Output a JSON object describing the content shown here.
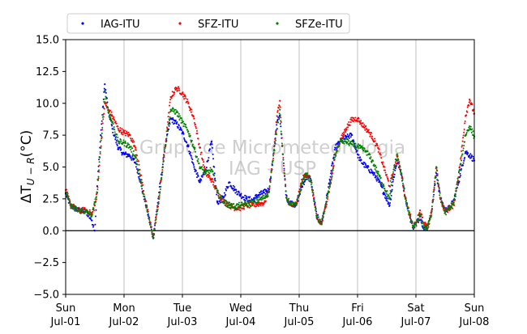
{
  "chart_data": {
    "type": "scatter",
    "title": "",
    "xlabel": "",
    "ylabel": "ΔT_{U−R} (°C)",
    "ylabel_main": "ΔT",
    "ylabel_sub": "U − R",
    "ylabel_unit": "(°C)",
    "ylim": [
      -5.0,
      15.0
    ],
    "xlim_days": [
      0,
      7
    ],
    "grid": "vertical at day boundaries",
    "legend_position": "top (above plot), horizontal",
    "watermark": [
      "Grupo de Micrometeorologia",
      "IAG - USP"
    ],
    "y_ticks": [
      "−5.0",
      "−2.5",
      "0.0",
      "2.5",
      "5.0",
      "7.5",
      "10.0",
      "12.5",
      "15.0"
    ],
    "y_tick_values": [
      -5,
      -2.5,
      0,
      2.5,
      5,
      7.5,
      10,
      12.5,
      15
    ],
    "x_ticks": [
      {
        "day": 0,
        "line1": "Sun",
        "line2": "Jul-01"
      },
      {
        "day": 1,
        "line1": "Mon",
        "line2": "Jul-02"
      },
      {
        "day": 2,
        "line1": "Tue",
        "line2": "Jul-03"
      },
      {
        "day": 3,
        "line1": "Wed",
        "line2": "Jul-04"
      },
      {
        "day": 4,
        "line1": "Thu",
        "line2": "Jul-05"
      },
      {
        "day": 5,
        "line1": "Fri",
        "line2": "Jul-06"
      },
      {
        "day": 6,
        "line1": "Sat",
        "line2": "Jul-07"
      },
      {
        "day": 7,
        "line1": "Sun",
        "line2": "Jul-08"
      }
    ],
    "series": [
      {
        "name": "IAG-ITU",
        "color": "#0000ff",
        "points": [
          [
            0,
            2.9
          ],
          [
            0.08,
            2.0
          ],
          [
            0.2,
            1.6
          ],
          [
            0.35,
            1.5
          ],
          [
            0.45,
            0.8
          ],
          [
            0.5,
            0.0
          ],
          [
            0.54,
            3.5
          ],
          [
            0.6,
            7.5
          ],
          [
            0.67,
            11.5
          ],
          [
            0.73,
            9.5
          ],
          [
            0.8,
            8.0
          ],
          [
            0.9,
            6.5
          ],
          [
            1.0,
            6.0
          ],
          [
            1.1,
            5.9
          ],
          [
            1.2,
            5.3
          ],
          [
            1.3,
            3.5
          ],
          [
            1.4,
            1.5
          ],
          [
            1.5,
            -0.6
          ],
          [
            1.6,
            3.0
          ],
          [
            1.7,
            6.5
          ],
          [
            1.8,
            8.8
          ],
          [
            1.9,
            8.4
          ],
          [
            2.0,
            7.7
          ],
          [
            2.1,
            6.6
          ],
          [
            2.2,
            5.0
          ],
          [
            2.3,
            3.8
          ],
          [
            2.4,
            4.8
          ],
          [
            2.5,
            7.0
          ],
          [
            2.55,
            4.5
          ],
          [
            2.6,
            2.2
          ],
          [
            2.7,
            2.6
          ],
          [
            2.8,
            3.8
          ],
          [
            2.9,
            3.2
          ],
          [
            3.0,
            2.8
          ],
          [
            3.1,
            2.5
          ],
          [
            3.2,
            2.4
          ],
          [
            3.3,
            2.8
          ],
          [
            3.4,
            3.0
          ],
          [
            3.48,
            3.2
          ],
          [
            3.55,
            5.5
          ],
          [
            3.62,
            8.5
          ],
          [
            3.67,
            9.0
          ],
          [
            3.72,
            6.0
          ],
          [
            3.78,
            2.6
          ],
          [
            3.85,
            2.2
          ],
          [
            3.95,
            2.0
          ],
          [
            4.05,
            3.5
          ],
          [
            4.12,
            4.2
          ],
          [
            4.2,
            4.0
          ],
          [
            4.3,
            1.2
          ],
          [
            4.38,
            0.5
          ],
          [
            4.45,
            2.0
          ],
          [
            4.55,
            4.7
          ],
          [
            4.62,
            6.5
          ],
          [
            4.7,
            7.0
          ],
          [
            4.8,
            7.3
          ],
          [
            4.9,
            7.5
          ],
          [
            5.0,
            6.0
          ],
          [
            5.05,
            5.5
          ],
          [
            5.15,
            5.0
          ],
          [
            5.25,
            4.6
          ],
          [
            5.35,
            4.0
          ],
          [
            5.45,
            3.0
          ],
          [
            5.55,
            2.0
          ],
          [
            5.62,
            4.2
          ],
          [
            5.68,
            5.5
          ],
          [
            5.75,
            4.5
          ],
          [
            5.82,
            2.6
          ],
          [
            5.9,
            1.0
          ],
          [
            5.95,
            0.3
          ],
          [
            6.0,
            0.5
          ],
          [
            6.07,
            1.1
          ],
          [
            6.13,
            0.3
          ],
          [
            6.2,
            0.2
          ],
          [
            6.27,
            1.5
          ],
          [
            6.35,
            4.5
          ],
          [
            6.42,
            2.5
          ],
          [
            6.5,
            1.6
          ],
          [
            6.58,
            1.8
          ],
          [
            6.65,
            2.4
          ],
          [
            6.75,
            4.2
          ],
          [
            6.85,
            6.2
          ],
          [
            6.95,
            5.8
          ],
          [
            7.0,
            5.5
          ]
        ]
      },
      {
        "name": "SFZ-ITU",
        "color": "#ff0000",
        "points": [
          [
            0,
            3.2
          ],
          [
            0.08,
            2.1
          ],
          [
            0.2,
            1.6
          ],
          [
            0.35,
            1.6
          ],
          [
            0.45,
            1.3
          ],
          [
            0.5,
            2.0
          ],
          [
            0.54,
            3.0
          ],
          [
            0.6,
            6.5
          ],
          [
            0.67,
            10.0
          ],
          [
            0.73,
            9.5
          ],
          [
            0.8,
            9.0
          ],
          [
            0.9,
            8.0
          ],
          [
            1.0,
            7.7
          ],
          [
            1.1,
            7.5
          ],
          [
            1.2,
            6.5
          ],
          [
            1.3,
            4.0
          ],
          [
            1.4,
            1.6
          ],
          [
            1.5,
            -0.4
          ],
          [
            1.6,
            2.5
          ],
          [
            1.7,
            6.5
          ],
          [
            1.8,
            10.5
          ],
          [
            1.9,
            11.2
          ],
          [
            2.0,
            10.8
          ],
          [
            2.1,
            10.0
          ],
          [
            2.2,
            8.8
          ],
          [
            2.3,
            6.5
          ],
          [
            2.4,
            4.5
          ],
          [
            2.5,
            4.0
          ],
          [
            2.55,
            3.5
          ],
          [
            2.6,
            3.0
          ],
          [
            2.7,
            2.3
          ],
          [
            2.8,
            2.0
          ],
          [
            2.9,
            1.8
          ],
          [
            3.0,
            1.8
          ],
          [
            3.1,
            2.0
          ],
          [
            3.2,
            2.0
          ],
          [
            3.3,
            2.1
          ],
          [
            3.4,
            2.2
          ],
          [
            3.48,
            3.0
          ],
          [
            3.55,
            5.5
          ],
          [
            3.62,
            9.0
          ],
          [
            3.67,
            10.2
          ],
          [
            3.72,
            6.0
          ],
          [
            3.78,
            2.6
          ],
          [
            3.85,
            2.0
          ],
          [
            3.95,
            2.0
          ],
          [
            4.05,
            4.0
          ],
          [
            4.12,
            4.5
          ],
          [
            4.2,
            4.0
          ],
          [
            4.3,
            1.0
          ],
          [
            4.38,
            0.5
          ],
          [
            4.45,
            1.8
          ],
          [
            4.55,
            4.0
          ],
          [
            4.62,
            6.0
          ],
          [
            4.7,
            7.0
          ],
          [
            4.8,
            8.0
          ],
          [
            4.9,
            8.7
          ],
          [
            5.0,
            8.8
          ],
          [
            5.05,
            8.5
          ],
          [
            5.15,
            8.0
          ],
          [
            5.25,
            7.4
          ],
          [
            5.35,
            6.5
          ],
          [
            5.45,
            5.0
          ],
          [
            5.55,
            3.5
          ],
          [
            5.62,
            4.8
          ],
          [
            5.68,
            5.8
          ],
          [
            5.75,
            4.5
          ],
          [
            5.82,
            2.5
          ],
          [
            5.9,
            1.2
          ],
          [
            5.95,
            0.4
          ],
          [
            6.0,
            0.5
          ],
          [
            6.07,
            1.6
          ],
          [
            6.13,
            0.6
          ],
          [
            6.2,
            0.2
          ],
          [
            6.27,
            1.6
          ],
          [
            6.35,
            5.0
          ],
          [
            6.42,
            2.5
          ],
          [
            6.5,
            1.5
          ],
          [
            6.58,
            1.8
          ],
          [
            6.65,
            2.0
          ],
          [
            6.75,
            5.0
          ],
          [
            6.85,
            9.0
          ],
          [
            6.92,
            10.3
          ],
          [
            7.0,
            9.2
          ]
        ]
      },
      {
        "name": "SFZe-ITU",
        "color": "#008000",
        "points": [
          [
            0,
            3.0
          ],
          [
            0.08,
            2.0
          ],
          [
            0.2,
            1.6
          ],
          [
            0.35,
            1.5
          ],
          [
            0.45,
            1.2
          ],
          [
            0.5,
            2.2
          ],
          [
            0.54,
            3.0
          ],
          [
            0.6,
            6.5
          ],
          [
            0.67,
            11.0
          ],
          [
            0.73,
            9.3
          ],
          [
            0.8,
            8.5
          ],
          [
            0.9,
            7.0
          ],
          [
            1.0,
            6.9
          ],
          [
            1.1,
            6.6
          ],
          [
            1.2,
            5.8
          ],
          [
            1.3,
            3.5
          ],
          [
            1.4,
            1.5
          ],
          [
            1.5,
            -0.6
          ],
          [
            1.6,
            2.5
          ],
          [
            1.7,
            6.5
          ],
          [
            1.8,
            9.5
          ],
          [
            1.9,
            9.3
          ],
          [
            2.0,
            8.5
          ],
          [
            2.1,
            7.8
          ],
          [
            2.2,
            6.5
          ],
          [
            2.3,
            5.0
          ],
          [
            2.4,
            4.5
          ],
          [
            2.5,
            4.8
          ],
          [
            2.55,
            4.0
          ],
          [
            2.6,
            3.0
          ],
          [
            2.7,
            2.3
          ],
          [
            2.8,
            2.0
          ],
          [
            2.9,
            1.9
          ],
          [
            3.0,
            2.0
          ],
          [
            3.1,
            2.1
          ],
          [
            3.2,
            2.2
          ],
          [
            3.3,
            2.4
          ],
          [
            3.4,
            2.6
          ],
          [
            3.48,
            3.0
          ],
          [
            3.55,
            5.5
          ],
          [
            3.62,
            8.0
          ],
          [
            3.67,
            9.5
          ],
          [
            3.72,
            6.0
          ],
          [
            3.78,
            2.6
          ],
          [
            3.85,
            2.1
          ],
          [
            3.95,
            2.0
          ],
          [
            4.05,
            3.8
          ],
          [
            4.12,
            4.4
          ],
          [
            4.2,
            4.0
          ],
          [
            4.3,
            1.1
          ],
          [
            4.38,
            0.5
          ],
          [
            4.45,
            2.0
          ],
          [
            4.55,
            4.0
          ],
          [
            4.62,
            6.0
          ],
          [
            4.7,
            7.0
          ],
          [
            4.8,
            7.0
          ],
          [
            4.9,
            6.8
          ],
          [
            5.0,
            6.6
          ],
          [
            5.05,
            6.5
          ],
          [
            5.15,
            6.2
          ],
          [
            5.25,
            5.5
          ],
          [
            5.35,
            4.5
          ],
          [
            5.45,
            3.5
          ],
          [
            5.55,
            2.5
          ],
          [
            5.62,
            4.8
          ],
          [
            5.68,
            6.0
          ],
          [
            5.75,
            4.5
          ],
          [
            5.82,
            2.5
          ],
          [
            5.9,
            1.1
          ],
          [
            5.95,
            0.3
          ],
          [
            6.0,
            0.5
          ],
          [
            6.07,
            1.2
          ],
          [
            6.13,
            0.3
          ],
          [
            6.2,
            0.2
          ],
          [
            6.27,
            1.5
          ],
          [
            6.35,
            5.0
          ],
          [
            6.42,
            2.5
          ],
          [
            6.5,
            1.4
          ],
          [
            6.58,
            1.8
          ],
          [
            6.65,
            2.2
          ],
          [
            6.75,
            4.8
          ],
          [
            6.85,
            7.5
          ],
          [
            6.92,
            8.2
          ],
          [
            7.0,
            7.4
          ]
        ]
      }
    ]
  }
}
